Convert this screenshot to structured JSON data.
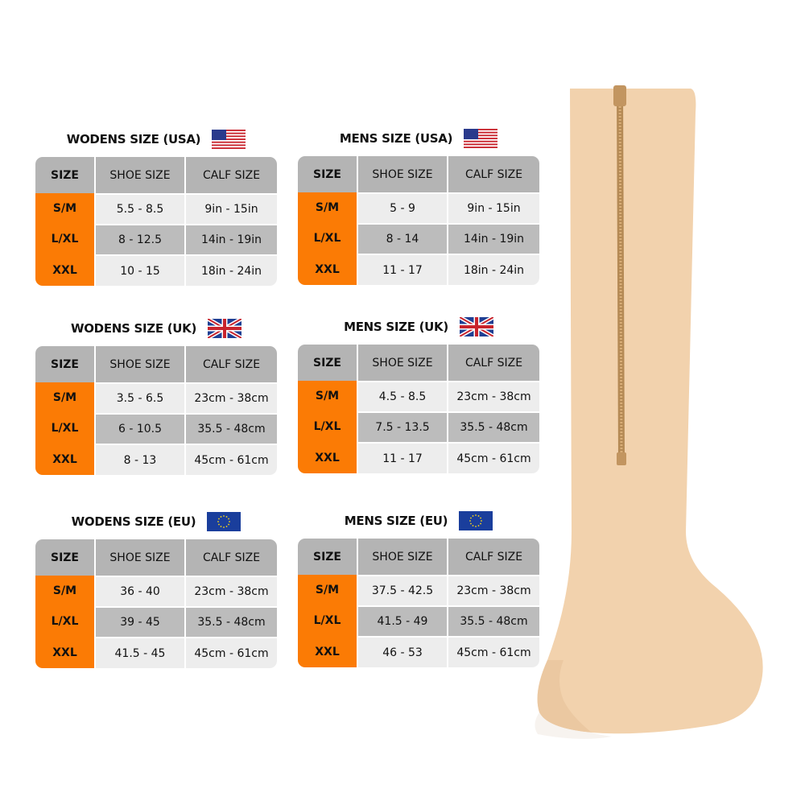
{
  "colors": {
    "size_column": "#fb7b05",
    "header": "#b4b4b4",
    "row_light": "#ededed",
    "row_dark": "#bcbcbc",
    "sock": "#f2d2ad"
  },
  "charts": [
    {
      "id": "women-usa",
      "title": "WODENS SIZE  (USA)",
      "flag": "usa-flag-icon",
      "headers": [
        "SIZE",
        "SHOE  SIZE",
        "CALF SIZE"
      ],
      "rows": [
        [
          "S/M",
          "5.5 - 8.5",
          "9in - 15in"
        ],
        [
          "L/XL",
          "8 - 12.5",
          "14in - 19in"
        ],
        [
          "XXL",
          "10 - 15",
          "18in - 24in"
        ]
      ]
    },
    {
      "id": "men-usa",
      "title": "MENS SIZE (USA)",
      "flag": "usa-flag-icon",
      "headers": [
        "SIZE",
        "SHOE  SIZE",
        "CALF SIZE"
      ],
      "rows": [
        [
          "S/M",
          "5 - 9",
          "9in - 15in"
        ],
        [
          "L/XL",
          "8 - 14",
          "14in - 19in"
        ],
        [
          "XXL",
          "11 - 17",
          "18in - 24in"
        ]
      ]
    },
    {
      "id": "women-uk",
      "title": "WODENS SIZE  (UK)",
      "flag": "uk-flag-icon",
      "headers": [
        "SIZE",
        "SHOE  SIZE",
        "CALF SIZE"
      ],
      "rows": [
        [
          "S/M",
          "3.5 - 6.5",
          "23cm - 38cm"
        ],
        [
          "L/XL",
          "6 - 10.5",
          "35.5 - 48cm"
        ],
        [
          "XXL",
          "8 - 13",
          "45cm - 61cm"
        ]
      ]
    },
    {
      "id": "men-uk",
      "title": "MENS SIZE (UK)",
      "flag": "uk-flag-icon",
      "headers": [
        "SIZE",
        "SHOE  SIZE",
        "CALF SIZE"
      ],
      "rows": [
        [
          "S/M",
          "4.5 - 8.5",
          "23cm - 38cm"
        ],
        [
          "L/XL",
          "7.5 - 13.5",
          "35.5 - 48cm"
        ],
        [
          "XXL",
          "11 - 17",
          "45cm - 61cm"
        ]
      ]
    },
    {
      "id": "women-eu",
      "title": "WODENS SIZE  (EU)",
      "flag": "eu-flag-icon",
      "headers": [
        "SIZE",
        "SHOE  SIZE",
        "CALF SIZE"
      ],
      "rows": [
        [
          "S/M",
          "36 - 40",
          "23cm - 38cm"
        ],
        [
          "L/XL",
          "39 - 45",
          "35.5 - 48cm"
        ],
        [
          "XXL",
          "41.5 - 45",
          "45cm - 61cm"
        ]
      ]
    },
    {
      "id": "men-eu",
      "title": "MENS SIZE (EU)",
      "flag": "eu-flag-icon",
      "headers": [
        "SIZE",
        "SHOE  SIZE",
        "CALF SIZE"
      ],
      "rows": [
        [
          "S/M",
          "37.5 - 42.5",
          "23cm - 38cm"
        ],
        [
          "L/XL",
          "41.5 - 49",
          "35.5 - 48cm"
        ],
        [
          "XXL",
          "46 - 53",
          "45cm - 61cm"
        ]
      ]
    }
  ]
}
